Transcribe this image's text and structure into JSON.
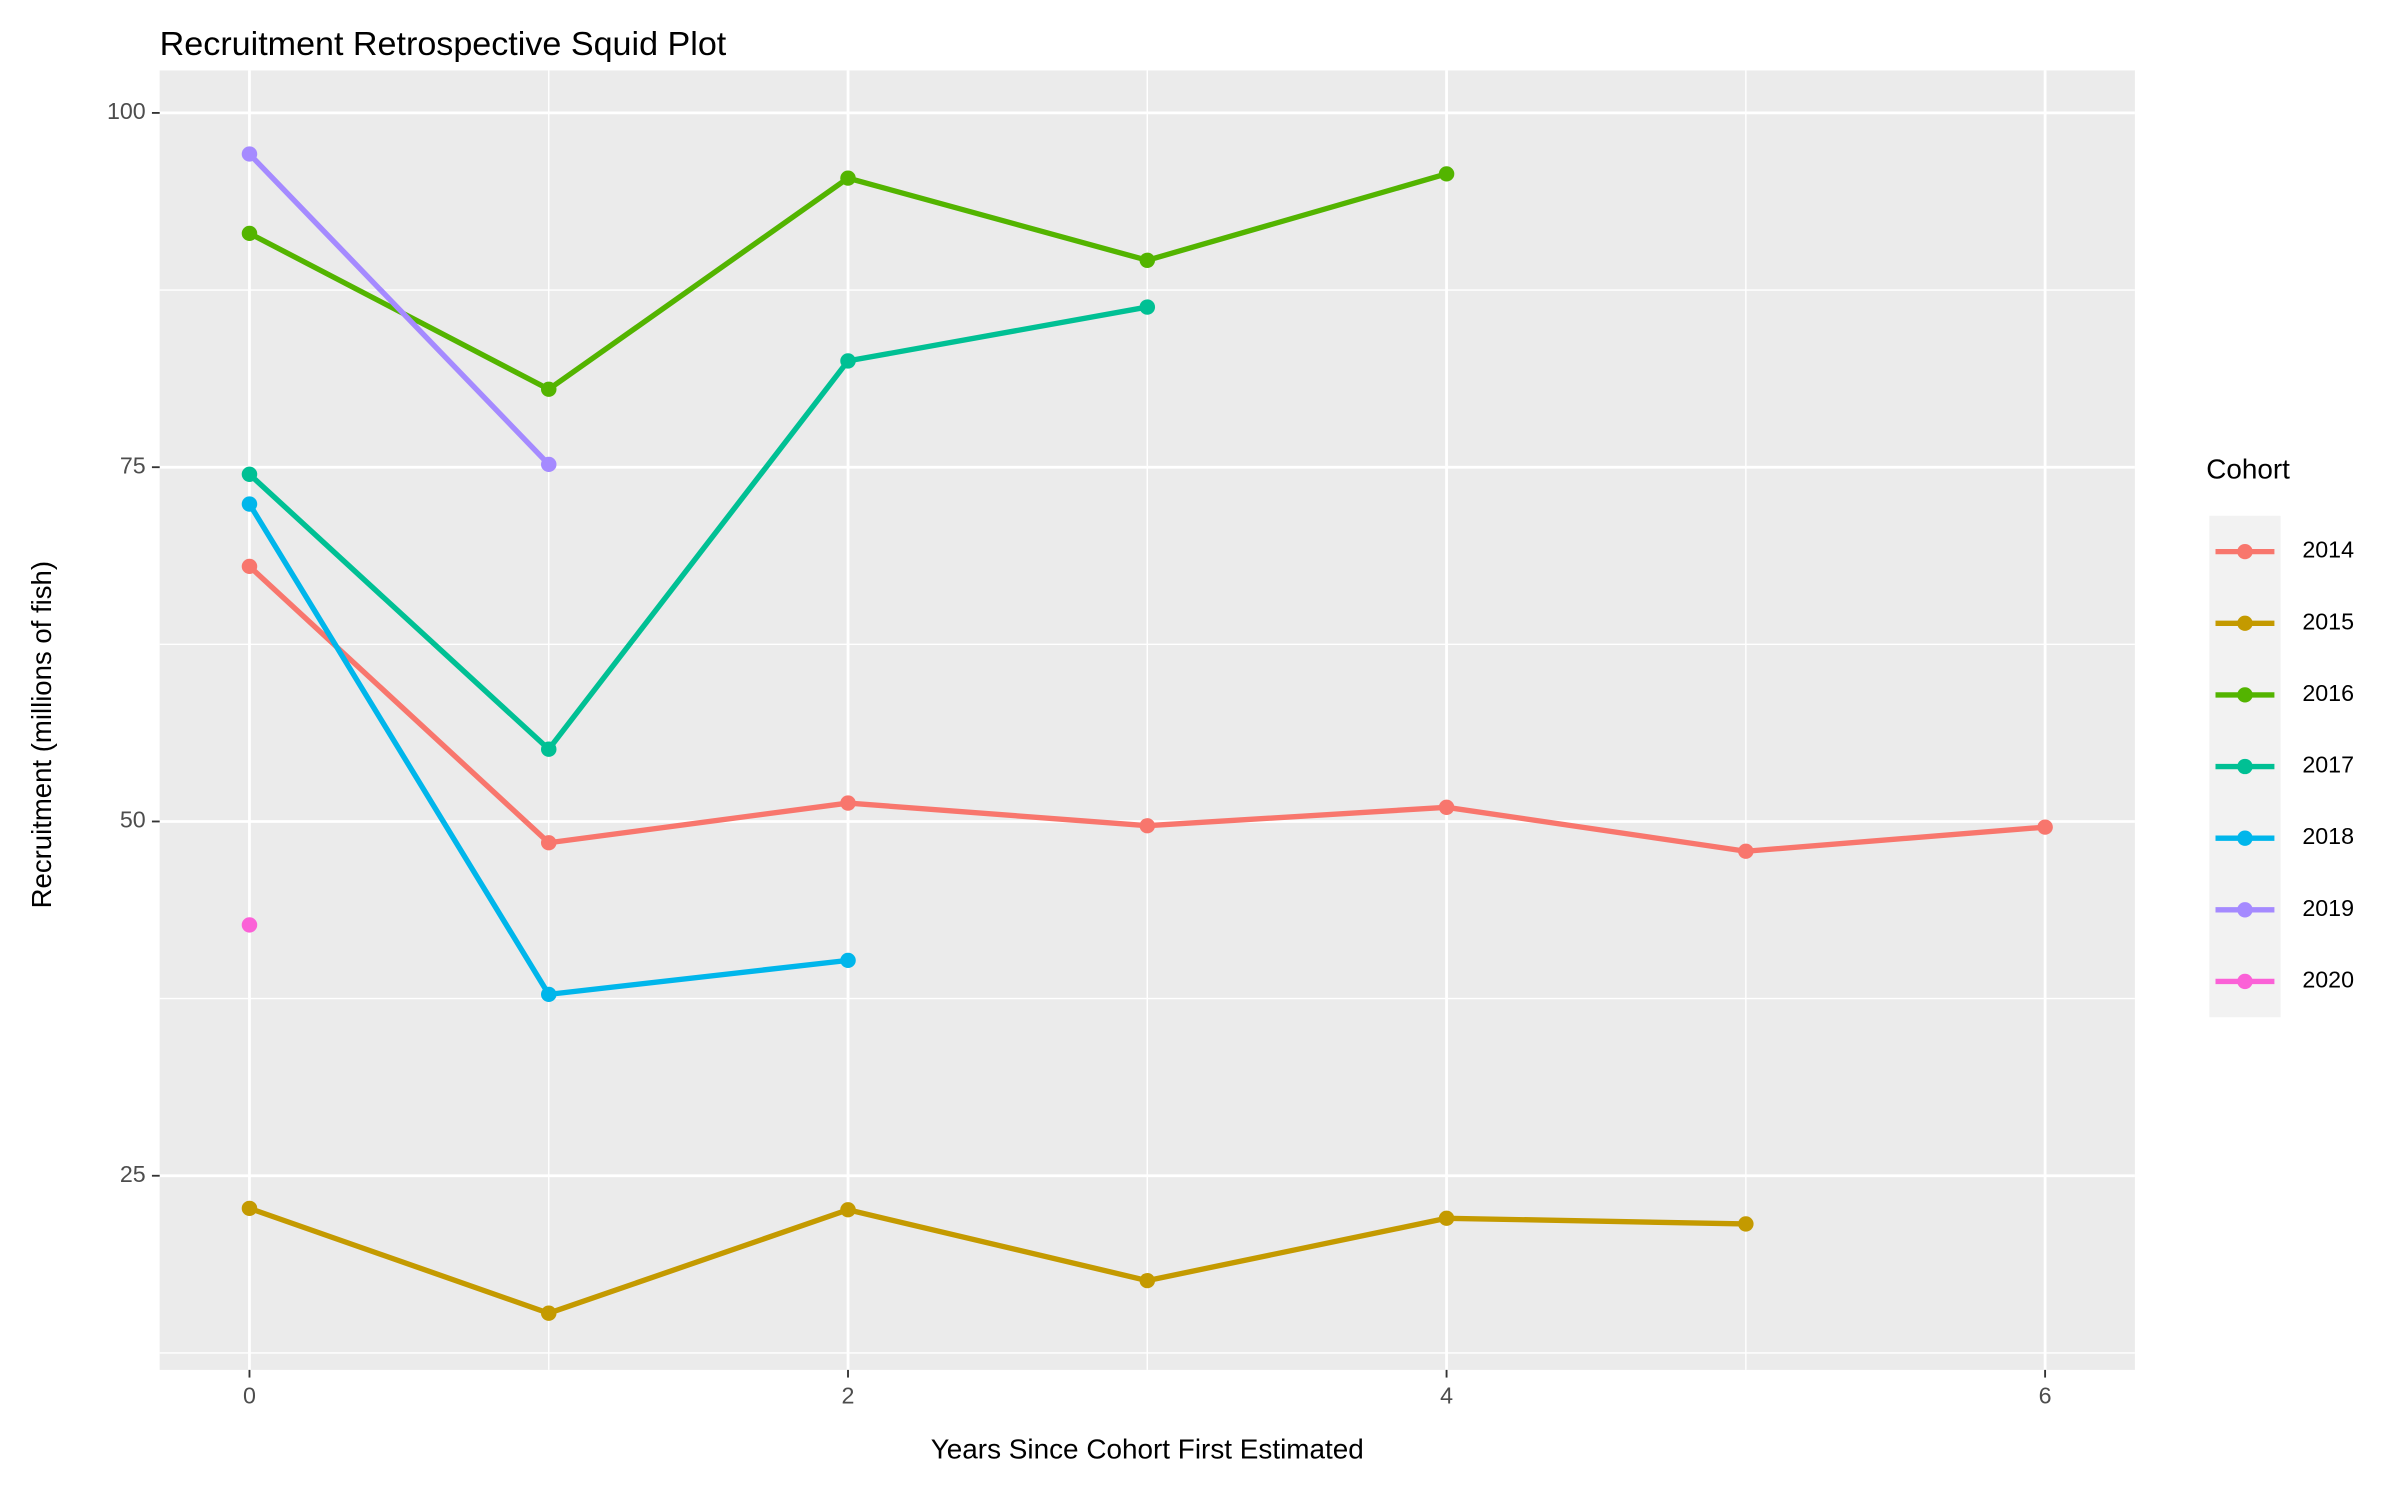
{
  "chart_data": {
    "type": "line",
    "title": "Recruitment Retrospective Squid Plot",
    "x_label": "Years Since Cohort First Estimated",
    "y_label": "Recruitment (millions of fish)",
    "legend_title": "Cohort",
    "legend_position": "right",
    "grid": true,
    "x": [
      0,
      1,
      2,
      3,
      4,
      5,
      6
    ],
    "xlim": [
      -0.3,
      6.3
    ],
    "xticks": [
      0,
      2,
      4,
      6
    ],
    "ylim": [
      11.3,
      103
    ],
    "yticks": [
      25,
      50,
      75,
      100
    ],
    "series": [
      {
        "name": "2014",
        "color": "#F8766D",
        "values": [
          68.0,
          48.5,
          51.3,
          49.7,
          51.0,
          47.9,
          49.6
        ]
      },
      {
        "name": "2015",
        "color": "#C49A00",
        "values": [
          22.7,
          15.3,
          22.6,
          17.6,
          22.0,
          21.6,
          null
        ]
      },
      {
        "name": "2016",
        "color": "#53B400",
        "values": [
          91.5,
          80.5,
          95.4,
          89.6,
          95.7,
          null,
          null
        ]
      },
      {
        "name": "2017",
        "color": "#00C094",
        "values": [
          74.5,
          55.1,
          82.5,
          86.3,
          null,
          null,
          null
        ]
      },
      {
        "name": "2018",
        "color": "#00B6EB",
        "values": [
          72.4,
          37.8,
          40.2,
          null,
          null,
          null,
          null
        ]
      },
      {
        "name": "2019",
        "color": "#A58AFF",
        "values": [
          97.1,
          75.2,
          null,
          null,
          null,
          null,
          null
        ]
      },
      {
        "name": "2020",
        "color": "#FB61D7",
        "values": [
          42.7,
          null,
          null,
          null,
          null,
          null,
          null
        ]
      }
    ]
  }
}
